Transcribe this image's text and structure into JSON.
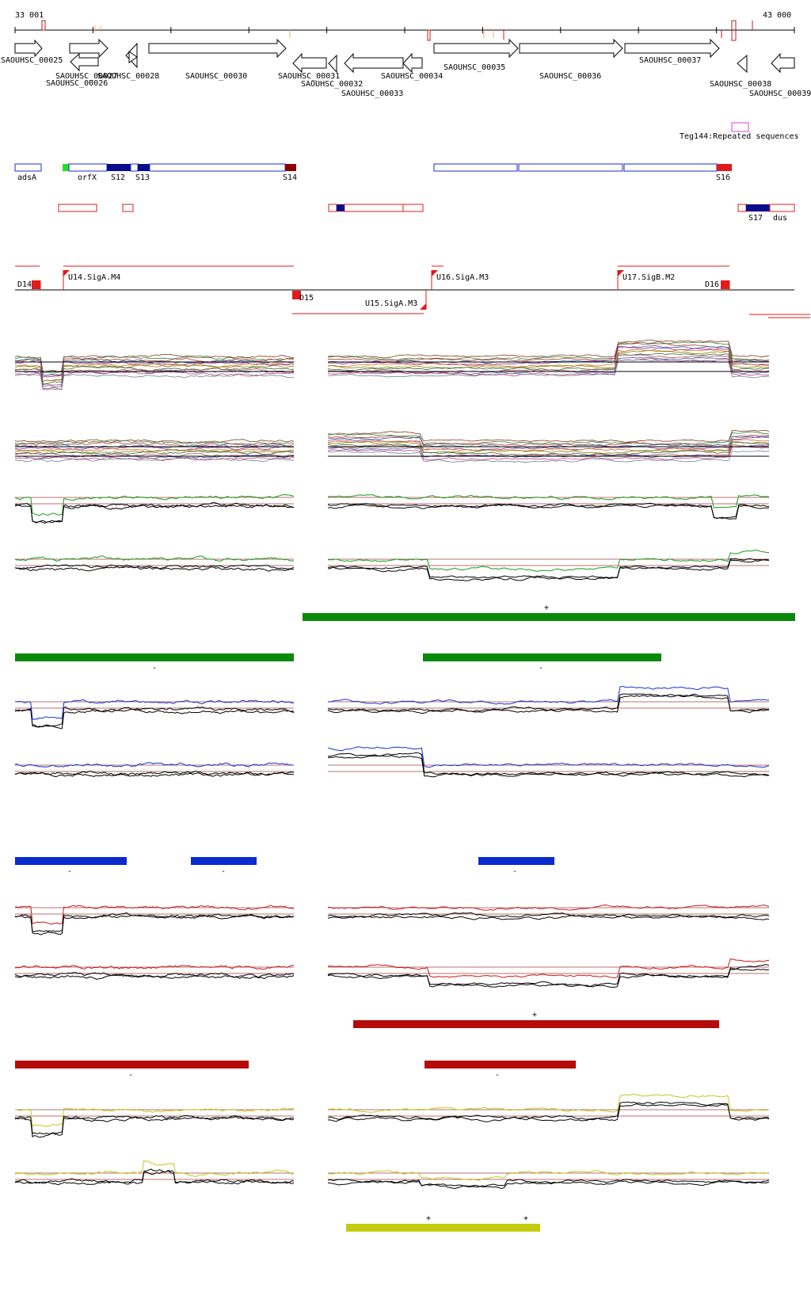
{
  "coords": {
    "start_label": "33 001",
    "end_label": "43 000"
  },
  "colors": {
    "red": "#e11b1b",
    "dark_red": "#8b0000",
    "navy": "#0b0b8c",
    "blue_outline": "#1a2cd6",
    "green_bright": "#22e022",
    "magenta": "#e040e0",
    "green_bar": "#0a8a0a",
    "blue_bar": "#0a2ccf",
    "red_bar": "#b50b0b",
    "yellow_bar": "#c4cc12",
    "black": "#000000",
    "trace_green": "#1a9a1a",
    "trace_blue": "#1a30d0",
    "trace_red": "#c81818",
    "trace_yellow": "#c4c81a"
  },
  "genes": [
    {
      "id": "g25",
      "label": "SAOUHSC_00025",
      "dir": "right"
    },
    {
      "id": "g26",
      "label": "SAOUHSC_00026",
      "dir": "right"
    },
    {
      "id": "g27",
      "label": "SAOUHSC_00027",
      "dir": "left"
    },
    {
      "id": "g28",
      "label": "SAOUHSC_00028",
      "dir": "left"
    },
    {
      "id": "g30",
      "label": "SAOUHSC_00030",
      "dir": "right"
    },
    {
      "id": "g31",
      "label": "SAOUHSC_00031",
      "dir": "left"
    },
    {
      "id": "g32",
      "label": "SAOUHSC_00032",
      "dir": "left"
    },
    {
      "id": "g33",
      "label": "SAOUHSC_00033",
      "dir": "left"
    },
    {
      "id": "g34",
      "label": "SAOUHSC_00034",
      "dir": "left"
    },
    {
      "id": "g35",
      "label": "SAOUHSC_00035",
      "dir": "right"
    },
    {
      "id": "g36",
      "label": "SAOUHSC_00036",
      "dir": "right"
    },
    {
      "id": "g37",
      "label": "SAOUHSC_00037",
      "dir": "right"
    },
    {
      "id": "g38",
      "label": "SAOUHSC_00038",
      "dir": "left"
    },
    {
      "id": "g39",
      "label": "SAOUHSC_00039",
      "dir": "left"
    }
  ],
  "repeat": {
    "label": "Teg144:Repeated sequences"
  },
  "segments": [
    {
      "id": "adsA",
      "label": "adsA"
    },
    {
      "id": "orfX",
      "label": "orfX"
    },
    {
      "id": "S12",
      "label": "S12"
    },
    {
      "id": "S13",
      "label": "S13"
    },
    {
      "id": "S14",
      "label": "S14"
    },
    {
      "id": "S16",
      "label": "S16"
    },
    {
      "id": "S17",
      "label": "S17"
    },
    {
      "id": "dus",
      "label": "dus"
    }
  ],
  "tus": [
    {
      "id": "D14",
      "label": "D14"
    },
    {
      "id": "U14",
      "label": "U14.SigA.M4"
    },
    {
      "id": "D15",
      "label": "D15"
    },
    {
      "id": "U15",
      "label": "U15.SigA.M3"
    },
    {
      "id": "U16",
      "label": "U16.SigA.M3"
    },
    {
      "id": "U17",
      "label": "U17.SigB.M2"
    },
    {
      "id": "D16",
      "label": "D16"
    }
  ],
  "bar_strands": {
    "green_plus": "+",
    "green_minus_1": "-",
    "green_minus_2": "-",
    "blue_minus_1": "-",
    "blue_minus_2": "-",
    "blue_minus_3": "-",
    "red_plus": "+",
    "red_minus_1": "-",
    "red_minus_2": "-",
    "yellow_plus_1": "+",
    "yellow_plus_2": "+"
  }
}
